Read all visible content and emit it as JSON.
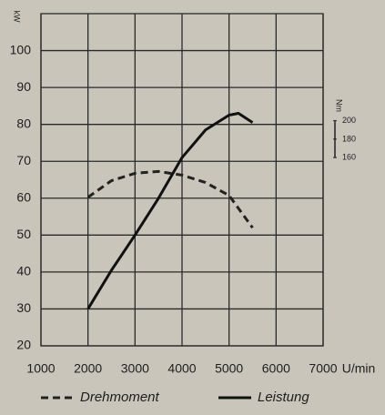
{
  "chart_data": {
    "type": "line",
    "ylabel": "kW",
    "y2label": "Nm",
    "xlabel": "U/min",
    "xlim": [
      1000,
      7000
    ],
    "xticks": [
      1000,
      2000,
      3000,
      4000,
      5000,
      6000,
      7000
    ],
    "ylim": [
      20,
      110
    ],
    "yticks": [
      20,
      30,
      40,
      50,
      60,
      70,
      80,
      90,
      100
    ],
    "y2lim": [
      -44,
      316
    ],
    "y2ticks": [
      160,
      180,
      200
    ],
    "grid": true,
    "series": [
      {
        "name": "Drehmoment",
        "color": "#222222",
        "linestyle": "dashed",
        "axis": "y2",
        "x": [
          2000,
          2500,
          3000,
          3500,
          4000,
          4500,
          5000,
          5500
        ],
        "values": [
          117,
          135,
          143,
          145,
          141,
          133,
          119,
          84
        ]
      },
      {
        "name": "Leistung",
        "color": "#111111",
        "linestyle": "solid",
        "x": [
          2000,
          2500,
          3000,
          3500,
          4000,
          4500,
          5000,
          5200,
          5500
        ],
        "values": [
          30,
          40.5,
          50,
          60,
          71,
          78.5,
          82.5,
          83,
          80.5
        ]
      }
    ]
  }
}
